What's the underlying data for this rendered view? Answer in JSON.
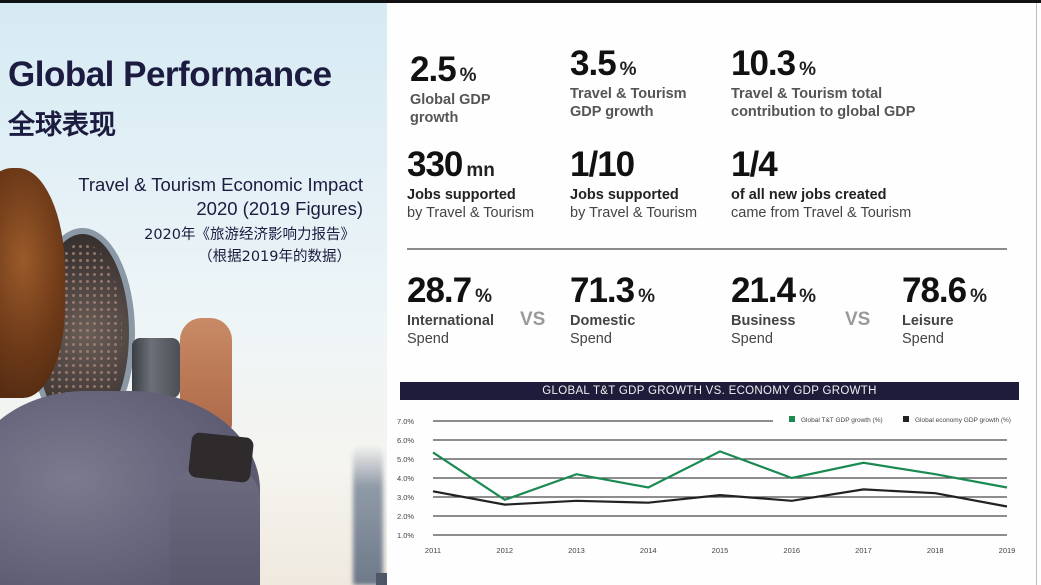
{
  "left_panel": {
    "title_en": "Global Performance",
    "title_zh": "全球表现",
    "subtitle_en_line1": "Travel & Tourism Economic Impact",
    "subtitle_en_line2": "2020 (2019 Figures)",
    "subtitle_zh_line1": "2020年《旅游经济影响力报告》",
    "subtitle_zh_line2": "（根据2019年的数据）",
    "photo": "person-looking-through-coin-operated-binoculars"
  },
  "stats": [
    {
      "value": "2.5",
      "unit": "%",
      "label_line1": "Global GDP",
      "label_line2": "growth"
    },
    {
      "value": "3.5",
      "unit": "%",
      "label_line1": "Travel & Tourism",
      "label_line2": "GDP growth"
    },
    {
      "value": "10.3",
      "unit": "%",
      "label_line1": "Travel & Tourism total",
      "label_line2": "contribution to global GDP"
    },
    {
      "value": "330",
      "unit": "mn",
      "label_line1": "Jobs supported",
      "label_line2": "by Travel & Tourism"
    },
    {
      "value": "1/10",
      "unit": "",
      "label_line1": "Jobs supported",
      "label_line2": "by Travel & Tourism"
    },
    {
      "value": "1/4",
      "unit": "",
      "label_line1": "of all new jobs created",
      "label_line2": "came from Travel & Tourism"
    }
  ],
  "spend": [
    {
      "value": "28.7",
      "unit": "%",
      "label_line1": "International",
      "label_line2": "Spend"
    },
    {
      "value": "71.3",
      "unit": "%",
      "label_line1": "Domestic",
      "label_line2": "Spend"
    },
    {
      "value": "21.4",
      "unit": "%",
      "label_line1": "Business",
      "label_line2": "Spend"
    },
    {
      "value": "78.6",
      "unit": "%",
      "label_line1": "Leisure",
      "label_line2": "Spend"
    }
  ],
  "vs_label": "VS",
  "colors": {
    "title_navy": "#1c1b40",
    "chart_header_bg": "#1e1c3a",
    "series_tt": "#1a8a52",
    "series_economy": "#222222"
  },
  "chart_data": {
    "type": "line",
    "title": "GLOBAL T&T GDP GROWTH VS. ECONOMY GDP GROWTH",
    "xlabel": "",
    "ylabel": "",
    "x": [
      "2011",
      "2012",
      "2013",
      "2014",
      "2015",
      "2016",
      "2017",
      "2018",
      "2019"
    ],
    "yticks": [
      "1.0%",
      "2.0%",
      "3.0%",
      "4.0%",
      "5.0%",
      "6.0%",
      "7.0%"
    ],
    "ylim": [
      1.0,
      7.0
    ],
    "grid": true,
    "legend_position": "top-right",
    "series": [
      {
        "name": "Global T&T GDP growth (%)",
        "color": "#1a8a52",
        "values": [
          5.35,
          2.85,
          4.2,
          3.5,
          5.4,
          4.0,
          4.8,
          4.2,
          3.5
        ]
      },
      {
        "name": "Global economy GDP growth (%)",
        "color": "#222222",
        "values": [
          3.3,
          2.6,
          2.8,
          2.7,
          3.1,
          2.8,
          3.4,
          3.2,
          2.5
        ]
      }
    ]
  }
}
